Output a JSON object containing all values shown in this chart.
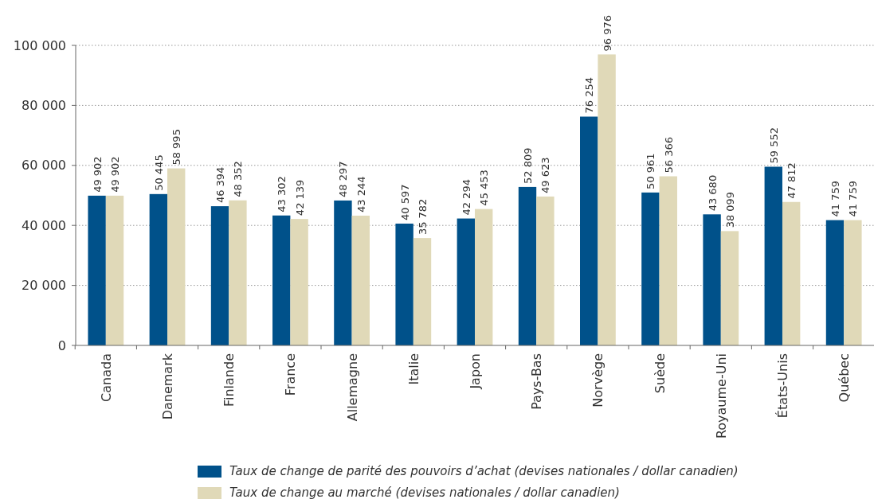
{
  "chart_data": {
    "type": "bar",
    "categories": [
      "Canada",
      "Danemark",
      "Finlande",
      "France",
      "Allemagne",
      "Italie",
      "Japon",
      "Pays-Bas",
      "Norvège",
      "Suède",
      "Royaume-Uni",
      "États-Unis",
      "Québec"
    ],
    "series": [
      {
        "name": "Taux de change de parité des pouvoirs d’achat (devises nationales / dollar canadien)",
        "color": "#00518a",
        "values": [
          49902,
          50445,
          46394,
          43302,
          48297,
          40597,
          42294,
          52809,
          76254,
          50961,
          43680,
          59552,
          41759
        ]
      },
      {
        "name": "Taux de change au marché (devises nationales / dollar canadien)",
        "color": "#e0d9b8",
        "values": [
          49902,
          58995,
          48352,
          42139,
          43244,
          35782,
          45453,
          49623,
          96976,
          56366,
          38099,
          47812,
          41759
        ]
      }
    ],
    "ylim": [
      0,
      100000
    ],
    "yticks": [
      0,
      {
        "value": 20000,
        "label": "20 000"
      },
      {
        "value": 40000,
        "label": "40 000"
      },
      {
        "value": 60000,
        "label": "60 000"
      },
      {
        "value": 80000,
        "label": "80 000"
      },
      {
        "value": 100000,
        "label": "100 000"
      }
    ],
    "grid": "y",
    "data_labels": true,
    "legend": "bottom"
  }
}
